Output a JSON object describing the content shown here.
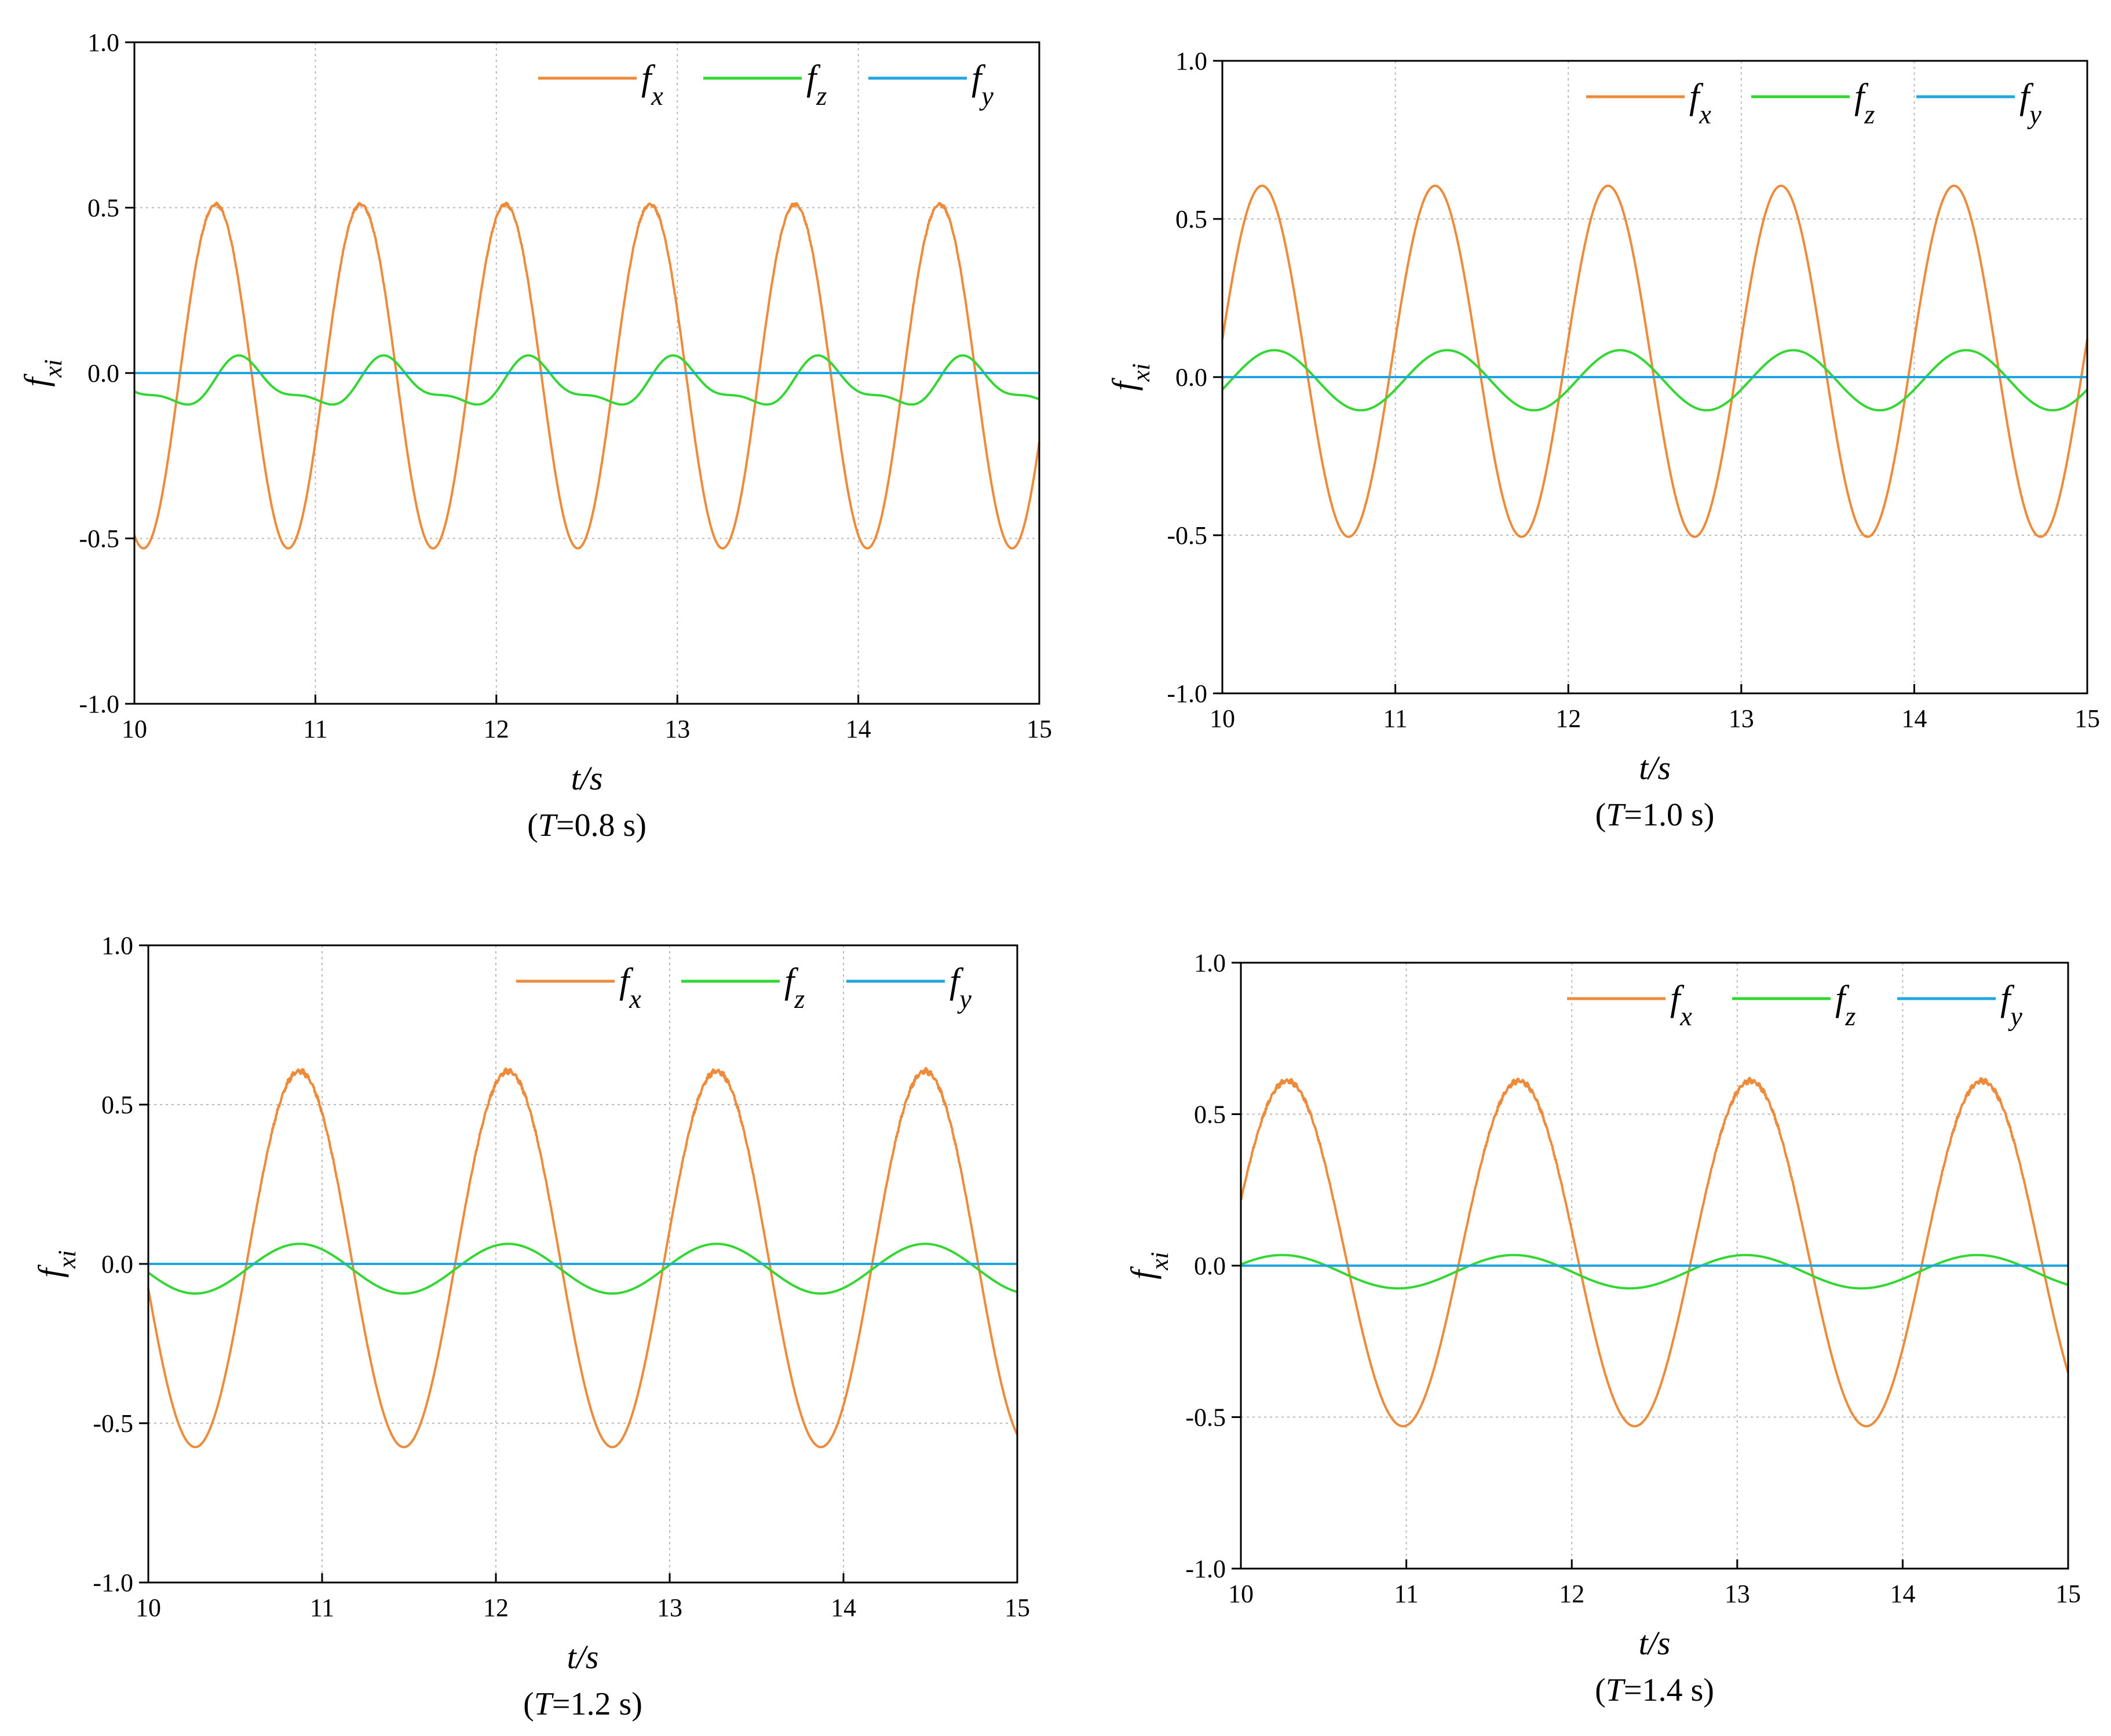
{
  "figure": {
    "legend_entries": [
      "f",
      "x",
      "f",
      "z",
      "f",
      "y"
    ]
  },
  "chart_data": [
    {
      "type": "line",
      "xlabel": "t/s",
      "ylabel": "f",
      "ylabel_sub": "xi",
      "caption_open": "(",
      "caption_var": "T",
      "caption_rest": "=0.8 s)",
      "xlim": [
        10,
        15
      ],
      "ylim": [
        -1.0,
        1.0
      ],
      "xticks": [
        "10",
        "11",
        "12",
        "13",
        "14",
        "15"
      ],
      "yticks": [
        "1.0",
        "0.5",
        "0.0",
        "-0.5",
        "-1.0"
      ],
      "grid": true,
      "legend_position": "top-right",
      "series": [
        {
          "name": "fx",
          "label_main": "f",
          "label_sub": "x",
          "color": "#ee8b3a",
          "period": 0.8,
          "peak_time": 10.45,
          "amplitude": 0.52,
          "offset": -0.01,
          "harmonic": 0.0,
          "noise": 0.006
        },
        {
          "name": "fz",
          "label_main": "f",
          "label_sub": "z",
          "color": "#33d633",
          "period": 0.8,
          "peak_time": 10.6,
          "amplitude": 0.065,
          "offset": -0.035,
          "harmonic": 0.025,
          "noise": 0.0
        },
        {
          "name": "fy",
          "label_main": "f",
          "label_sub": "y",
          "color": "#1fa6e0",
          "period": 0.8,
          "peak_time": 10.0,
          "amplitude": 0.0,
          "offset": 0.0,
          "harmonic": 0.0,
          "noise": 0.0
        }
      ]
    },
    {
      "type": "line",
      "xlabel": "t/s",
      "ylabel": "f",
      "ylabel_sub": "xi",
      "caption_open": "(",
      "caption_var": "T",
      "caption_rest": "=1.0 s)",
      "xlim": [
        10,
        15
      ],
      "ylim": [
        -1.0,
        1.0
      ],
      "xticks": [
        "10",
        "11",
        "12",
        "13",
        "14",
        "15"
      ],
      "yticks": [
        "1.0",
        "0.5",
        "0.0",
        "-0.5",
        "-1.0"
      ],
      "grid": true,
      "legend_position": "top-right",
      "series": [
        {
          "name": "fx",
          "label_main": "f",
          "label_sub": "x",
          "color": "#ee8b3a",
          "period": 1.0,
          "peak_time": 10.23,
          "amplitude": 0.555,
          "offset": 0.05,
          "harmonic": 0.0,
          "noise": 0.0
        },
        {
          "name": "fz",
          "label_main": "f",
          "label_sub": "z",
          "color": "#33d633",
          "period": 1.0,
          "peak_time": 10.3,
          "amplitude": 0.095,
          "offset": -0.01,
          "harmonic": 0.0,
          "noise": 0.0
        },
        {
          "name": "fy",
          "label_main": "f",
          "label_sub": "y",
          "color": "#1fa6e0",
          "period": 1.0,
          "peak_time": 10.0,
          "amplitude": 0.0,
          "offset": 0.0,
          "harmonic": 0.0,
          "noise": 0.0
        }
      ]
    },
    {
      "type": "line",
      "xlabel": "t/s",
      "ylabel": "f",
      "ylabel_sub": "xi",
      "caption_open": "(",
      "caption_var": "T",
      "caption_rest": "=1.2 s)",
      "xlim": [
        10,
        15
      ],
      "ylim": [
        -1.0,
        1.0
      ],
      "xticks": [
        "10",
        "11",
        "12",
        "13",
        "14",
        "15"
      ],
      "yticks": [
        "1.0",
        "0.5",
        "0.0",
        "-0.5",
        "-1.0"
      ],
      "grid": true,
      "legend_position": "top-right",
      "series": [
        {
          "name": "fx",
          "label_main": "f",
          "label_sub": "x",
          "color": "#ee8b3a",
          "period": 1.2,
          "peak_time": 10.87,
          "amplitude": 0.59,
          "offset": 0.015,
          "harmonic": 0.0,
          "noise": 0.01
        },
        {
          "name": "fz",
          "label_main": "f",
          "label_sub": "z",
          "color": "#33d633",
          "period": 1.2,
          "peak_time": 10.87,
          "amplitude": 0.078,
          "offset": -0.015,
          "harmonic": 0.0,
          "noise": 0.0
        },
        {
          "name": "fy",
          "label_main": "f",
          "label_sub": "y",
          "color": "#1fa6e0",
          "period": 1.2,
          "peak_time": 10.0,
          "amplitude": 0.0,
          "offset": 0.0,
          "harmonic": 0.0,
          "noise": 0.0
        }
      ]
    },
    {
      "type": "line",
      "xlabel": "t/s",
      "ylabel": "f",
      "ylabel_sub": "xi",
      "caption_open": "(",
      "caption_var": "T",
      "caption_rest": "=1.4 s)",
      "xlim": [
        10,
        15
      ],
      "ylim": [
        -1.0,
        1.0
      ],
      "xticks": [
        "10",
        "11",
        "12",
        "13",
        "14",
        "15"
      ],
      "yticks": [
        "1.0",
        "0.5",
        "0.0",
        "-0.5",
        "-1.0"
      ],
      "grid": true,
      "legend_position": "top-right",
      "series": [
        {
          "name": "fx",
          "label_main": "f",
          "label_sub": "x",
          "color": "#ee8b3a",
          "period": 1.4,
          "peak_time": 10.28,
          "amplitude": 0.57,
          "offset": 0.04,
          "harmonic": 0.0,
          "noise": 0.01
        },
        {
          "name": "fz",
          "label_main": "f",
          "label_sub": "z",
          "color": "#33d633",
          "period": 1.4,
          "peak_time": 10.25,
          "amplitude": 0.055,
          "offset": -0.02,
          "harmonic": 0.0,
          "noise": 0.0
        },
        {
          "name": "fy",
          "label_main": "f",
          "label_sub": "y",
          "color": "#1fa6e0",
          "period": 1.4,
          "peak_time": 10.0,
          "amplitude": 0.0,
          "offset": 0.0,
          "harmonic": 0.0,
          "noise": 0.0
        }
      ]
    }
  ]
}
